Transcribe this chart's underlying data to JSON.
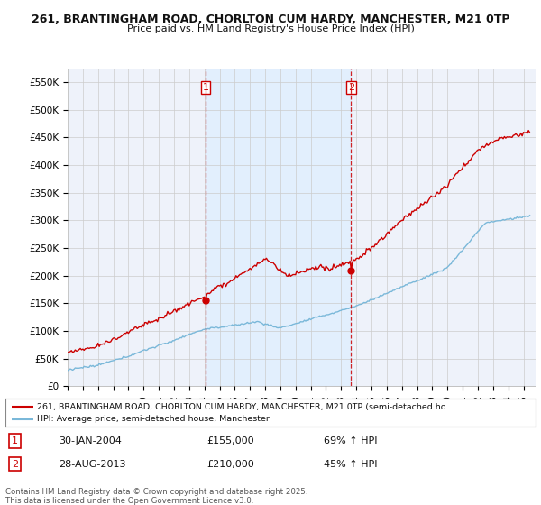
{
  "title_line1": "261, BRANTINGHAM ROAD, CHORLTON CUM HARDY, MANCHESTER, M21 0TP",
  "title_line2": "Price paid vs. HM Land Registry's House Price Index (HPI)",
  "ylim": [
    0,
    575000
  ],
  "yticks": [
    0,
    50000,
    100000,
    150000,
    200000,
    250000,
    300000,
    350000,
    400000,
    450000,
    500000,
    550000
  ],
  "ytick_labels": [
    "£0",
    "£50K",
    "£100K",
    "£150K",
    "£200K",
    "£250K",
    "£300K",
    "£350K",
    "£400K",
    "£450K",
    "£500K",
    "£550K"
  ],
  "sale1_date": 2004.08,
  "sale1_price": 155000,
  "sale2_date": 2013.66,
  "sale2_price": 210000,
  "marker_color": "#cc0000",
  "hpi_color": "#7ab8d9",
  "price_color": "#cc0000",
  "vline_color": "#cc0000",
  "shade_color": "#ddeeff",
  "grid_color": "#cccccc",
  "bg_color": "#eef2fa",
  "legend_label1": "261, BRANTINGHAM ROAD, CHORLTON CUM HARDY, MANCHESTER, M21 0TP (semi-detached ho",
  "legend_label2": "HPI: Average price, semi-detached house, Manchester",
  "note1_num": "1",
  "note1_date": "30-JAN-2004",
  "note1_price": "£155,000",
  "note1_hpi": "69% ↑ HPI",
  "note2_num": "2",
  "note2_date": "28-AUG-2013",
  "note2_price": "£210,000",
  "note2_hpi": "45% ↑ HPI",
  "footer": "Contains HM Land Registry data © Crown copyright and database right 2025.\nThis data is licensed under the Open Government Licence v3.0.",
  "xlim_left": 1995.0,
  "xlim_right": 2025.8
}
